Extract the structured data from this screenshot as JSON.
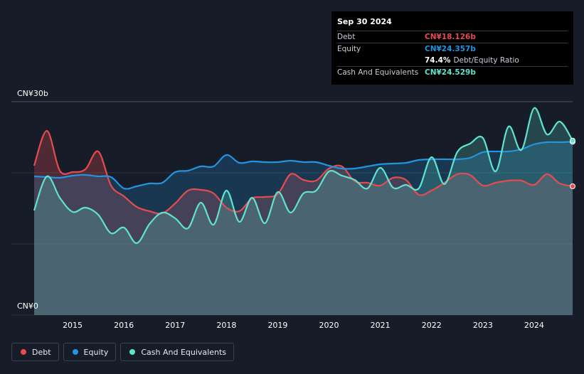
{
  "tooltip": {
    "date": "Sep 30 2024",
    "debt_label": "Debt",
    "debt_value": "CN¥18.126b",
    "equity_label": "Equity",
    "equity_value": "CN¥24.357b",
    "ratio_value": "74.4%",
    "ratio_label": "Debt/Equity Ratio",
    "cash_label": "Cash And Equivalents",
    "cash_value": "CN¥24.529b"
  },
  "legend": {
    "debt": "Debt",
    "equity": "Equity",
    "cash": "Cash And Equivalents"
  },
  "colors": {
    "background": "#161d29",
    "debt": "#e64b4f",
    "equity": "#2394df",
    "cash": "#5fe3cf"
  },
  "chart_data": {
    "type": "area",
    "title": "",
    "xlabel": "",
    "ylabel": "",
    "ylim": [
      0,
      30
    ],
    "unit": "CN¥ billions",
    "y_tick_labels": [
      "CN¥0",
      "CN¥30b"
    ],
    "x_tick_labels": [
      "2015",
      "2016",
      "2017",
      "2018",
      "2019",
      "2020",
      "2021",
      "2022",
      "2023",
      "2024"
    ],
    "grid": true,
    "legend_position": "bottom-left",
    "series": [
      {
        "name": "Debt",
        "x": [
          2014.25,
          2014.5,
          2014.75,
          2015.0,
          2015.25,
          2015.5,
          2015.75,
          2016.0,
          2016.25,
          2016.5,
          2016.75,
          2017.0,
          2017.25,
          2017.5,
          2017.75,
          2018.0,
          2018.25,
          2018.5,
          2018.75,
          2019.0,
          2019.25,
          2019.5,
          2019.75,
          2020.0,
          2020.25,
          2020.5,
          2020.75,
          2021.0,
          2021.25,
          2021.5,
          2021.75,
          2022.0,
          2022.25,
          2022.5,
          2022.75,
          2023.0,
          2023.25,
          2023.5,
          2023.75,
          2024.0,
          2024.25,
          2024.5,
          2024.75
        ],
        "values": [
          21.0,
          25.9,
          20.3,
          20.1,
          20.5,
          23.0,
          18.2,
          16.7,
          15.2,
          14.6,
          14.3,
          15.7,
          17.5,
          17.6,
          17.1,
          15.1,
          14.6,
          16.4,
          16.6,
          17.0,
          19.8,
          19.0,
          18.9,
          20.6,
          20.9,
          18.8,
          18.6,
          18.2,
          19.3,
          19.0,
          16.9,
          17.5,
          18.6,
          19.8,
          19.7,
          18.2,
          18.6,
          18.9,
          18.9,
          18.3,
          19.8,
          18.5,
          18.1
        ]
      },
      {
        "name": "Equity",
        "x": [
          2014.25,
          2014.5,
          2014.75,
          2015.0,
          2015.25,
          2015.5,
          2015.75,
          2016.0,
          2016.25,
          2016.5,
          2016.75,
          2017.0,
          2017.25,
          2017.5,
          2017.75,
          2018.0,
          2018.25,
          2018.5,
          2018.75,
          2019.0,
          2019.25,
          2019.5,
          2019.75,
          2020.0,
          2020.25,
          2020.5,
          2020.75,
          2021.0,
          2021.25,
          2021.5,
          2021.75,
          2022.0,
          2022.25,
          2022.5,
          2022.75,
          2023.0,
          2023.25,
          2023.5,
          2023.75,
          2024.0,
          2024.25,
          2024.5,
          2024.75
        ],
        "values": [
          19.5,
          19.4,
          19.3,
          19.6,
          19.7,
          19.5,
          19.4,
          17.8,
          18.1,
          18.5,
          18.6,
          20.1,
          20.3,
          20.9,
          20.9,
          22.5,
          21.4,
          21.6,
          21.5,
          21.5,
          21.7,
          21.5,
          21.5,
          21.0,
          20.6,
          20.6,
          20.9,
          21.2,
          21.3,
          21.4,
          21.8,
          21.9,
          21.9,
          21.9,
          22.1,
          22.9,
          23.0,
          23.0,
          23.3,
          24.0,
          24.3,
          24.3,
          24.357
        ]
      },
      {
        "name": "Cash And Equivalents",
        "x": [
          2014.25,
          2014.5,
          2014.75,
          2015.0,
          2015.25,
          2015.5,
          2015.75,
          2016.0,
          2016.25,
          2016.5,
          2016.75,
          2017.0,
          2017.25,
          2017.5,
          2017.75,
          2018.0,
          2018.25,
          2018.5,
          2018.75,
          2019.0,
          2019.25,
          2019.5,
          2019.75,
          2020.0,
          2020.25,
          2020.5,
          2020.75,
          2021.0,
          2021.25,
          2021.5,
          2021.75,
          2022.0,
          2022.25,
          2022.5,
          2022.75,
          2023.0,
          2023.25,
          2023.5,
          2023.75,
          2024.0,
          2024.25,
          2024.5,
          2024.75
        ],
        "values": [
          14.7,
          19.5,
          16.5,
          14.5,
          15.1,
          14.1,
          11.5,
          12.3,
          10.1,
          12.8,
          14.4,
          13.6,
          12.2,
          15.8,
          12.7,
          17.5,
          13.1,
          16.5,
          12.9,
          17.3,
          14.4,
          17.1,
          17.5,
          20.2,
          19.6,
          19.0,
          17.8,
          20.7,
          17.9,
          18.3,
          17.8,
          22.2,
          18.4,
          22.9,
          24.1,
          24.9,
          20.2,
          26.5,
          23.2,
          29.1,
          25.4,
          27.2,
          24.529
        ]
      }
    ]
  }
}
